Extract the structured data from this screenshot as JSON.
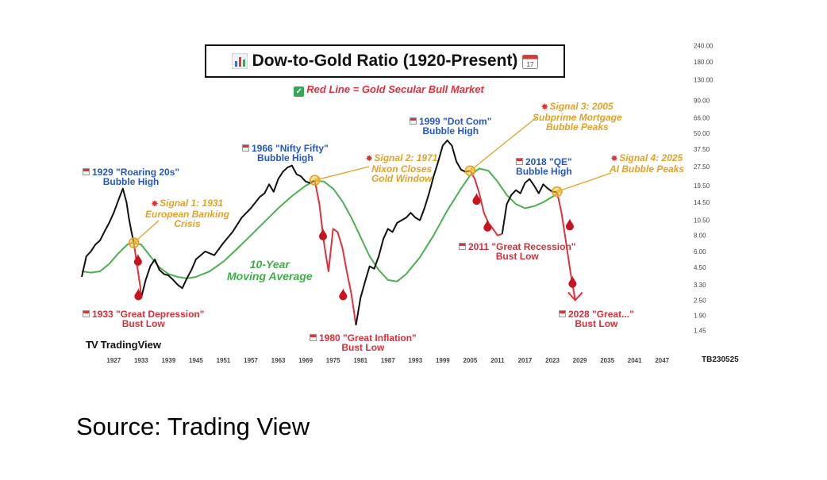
{
  "header": {
    "title": "Dow-to-Gold Ratio (1920-Present)",
    "subtitle": "Red Line = Gold Secular Bull Market"
  },
  "icons": {
    "title_left": "bar-chart-icon",
    "title_right": "calendar-icon",
    "subtitle_left": "check-icon",
    "drops": "blood-drop-icon",
    "signals": "spark-icon"
  },
  "colors": {
    "ratio_line": "#111111",
    "bear_line": "#e0303b",
    "moving_average": "#4caf50",
    "bubble_labels": "#2457c5",
    "signal_labels": "#e0a227",
    "bust_labels": "#d62f3a",
    "signal_circles": "#f5c542"
  },
  "chart_data": {
    "type": "line",
    "y_scale": "log",
    "ylim": [
      1.2,
      260
    ],
    "xlim": [
      1920,
      2052
    ],
    "y_ticks": [
      "240.00",
      "180.00",
      "130.00",
      "90.00",
      "66.00",
      "50.00",
      "37.50",
      "27.50",
      "19.50",
      "14.50",
      "10.50",
      "8.00",
      "6.00",
      "4.50",
      "3.30",
      "2.50",
      "1.90",
      "1.45"
    ],
    "x_ticks": [
      "1927",
      "1933",
      "1939",
      "1945",
      "1951",
      "1957",
      "1963",
      "1969",
      "1975",
      "1981",
      "1987",
      "1993",
      "1999",
      "2005",
      "2011",
      "2017",
      "2023",
      "2029",
      "2035",
      "2041",
      "2047"
    ],
    "series": [
      {
        "name": "",
        "role": "ratio",
        "x": [
          1920,
          1921,
          1922,
          1923,
          1924,
          1925,
          1926,
          1927,
          1928,
          1929,
          1929.8,
          1930.3,
          1930.8,
          1931.4
        ],
        "y": [
          3.8,
          5.5,
          6.0,
          6.8,
          7.3,
          8.6,
          10.0,
          12.0,
          15.0,
          18.5,
          14.5,
          11.0,
          8.8,
          7.0
        ]
      },
      {
        "name": "",
        "role": "ratio-bear",
        "x": [
          1931.4,
          1932,
          1932.8,
          1933
        ],
        "y": [
          7.0,
          5.0,
          3.2,
          2.6
        ]
      },
      {
        "name": "",
        "role": "ratio",
        "x": [
          1933,
          1934,
          1935,
          1936,
          1937,
          1938,
          1939,
          1940,
          1941,
          1942,
          1943,
          1944,
          1945,
          1947,
          1949,
          1951,
          1953,
          1955,
          1957,
          1959,
          1960,
          1961,
          1962,
          1963,
          1964,
          1965,
          1966,
          1967,
          1968,
          1969,
          1970,
          1971
        ],
        "y": [
          2.6,
          3.6,
          4.6,
          5.2,
          4.3,
          4.0,
          3.9,
          3.6,
          3.3,
          3.1,
          3.7,
          4.3,
          5.2,
          6.0,
          5.6,
          7.0,
          8.5,
          11.0,
          13.0,
          16.0,
          17.0,
          20.0,
          17.5,
          22.0,
          25.0,
          27.0,
          28.0,
          24.0,
          23.0,
          21.0,
          20.5,
          21.5
        ]
      },
      {
        "name": "",
        "role": "ratio-bear",
        "x": [
          1971,
          1972,
          1973,
          1974,
          1975,
          1976,
          1977,
          1978,
          1979,
          1980
        ],
        "y": [
          21.5,
          14.0,
          7.0,
          4.2,
          9.0,
          8.5,
          6.5,
          4.2,
          2.8,
          1.6
        ]
      },
      {
        "name": "",
        "role": "ratio",
        "x": [
          1980,
          1981,
          1982,
          1983,
          1984,
          1985,
          1986,
          1987,
          1988,
          1989,
          1990,
          1991,
          1992,
          1993,
          1994,
          1995,
          1996,
          1997,
          1998,
          1999,
          2000,
          2001,
          2002,
          2003,
          2004,
          2005
        ],
        "y": [
          1.6,
          2.6,
          3.5,
          4.6,
          4.4,
          5.5,
          7.5,
          9.0,
          8.5,
          10.0,
          10.5,
          11.0,
          12.0,
          11.0,
          10.5,
          13.0,
          17.0,
          23.0,
          30.0,
          40.0,
          44.0,
          40.0,
          30.0,
          26.0,
          25.0,
          25.5
        ]
      },
      {
        "name": "",
        "role": "ratio-bear",
        "x": [
          2005,
          2006,
          2007,
          2008,
          2009,
          2010,
          2011,
          2012
        ],
        "y": [
          25.5,
          22.0,
          17.0,
          12.0,
          10.0,
          9.0,
          8.0,
          8.2
        ]
      },
      {
        "name": "",
        "role": "ratio",
        "x": [
          2012,
          2013,
          2014,
          2015,
          2016,
          2017,
          2018,
          2019,
          2020,
          2021,
          2022,
          2023,
          2024
        ],
        "y": [
          8.2,
          14.0,
          16.5,
          18.0,
          17.0,
          20.5,
          22.0,
          19.5,
          17.0,
          20.0,
          18.5,
          17.5,
          17.5
        ]
      },
      {
        "name": "",
        "role": "ratio-bear",
        "x": [
          2024,
          2025,
          2026,
          2027,
          2028
        ],
        "y": [
          17.5,
          12.0,
          7.0,
          4.0,
          2.5
        ]
      },
      {
        "name": "10-Year Moving Average",
        "role": "moving-average",
        "x": [
          1920,
          1922,
          1924,
          1926,
          1928,
          1930,
          1931,
          1933,
          1935,
          1937,
          1939,
          1941,
          1943,
          1945,
          1948,
          1951,
          1954,
          1957,
          1960,
          1963,
          1966,
          1969,
          1971,
          1973,
          1975,
          1977,
          1979,
          1981,
          1983,
          1985,
          1987,
          1989,
          1991,
          1994,
          1997,
          2000,
          2003,
          2005,
          2007,
          2009,
          2011,
          2013,
          2015,
          2017,
          2019,
          2021,
          2023,
          2024
        ],
        "y": [
          4.2,
          4.1,
          4.2,
          4.8,
          5.8,
          6.8,
          7.0,
          6.8,
          5.5,
          4.5,
          4.0,
          3.8,
          3.7,
          3.8,
          4.2,
          5.0,
          6.3,
          8.0,
          10.2,
          13.0,
          16.2,
          19.5,
          21.3,
          21.0,
          18.5,
          14.8,
          11.0,
          7.8,
          5.5,
          4.3,
          3.6,
          3.5,
          4.0,
          5.4,
          8.0,
          12.5,
          18.5,
          23.5,
          26.5,
          25.5,
          21.0,
          16.5,
          14.0,
          13.0,
          13.5,
          14.5,
          16.0,
          17.0
        ]
      }
    ],
    "signal_points": [
      {
        "x": 1931.4,
        "y": 7.0
      },
      {
        "x": 1971,
        "y": 21.5
      },
      {
        "x": 2005,
        "y": 25.5
      },
      {
        "x": 2024,
        "y": 17.5
      }
    ],
    "drops": [
      {
        "x": 1932.3,
        "y": 5.2
      },
      {
        "x": 1932.4,
        "y": 2.8
      },
      {
        "x": 1972.8,
        "y": 8.2
      },
      {
        "x": 1977.2,
        "y": 2.8
      },
      {
        "x": 2006.4,
        "y": 15.5
      },
      {
        "x": 2008.8,
        "y": 9.6
      },
      {
        "x": 2026.8,
        "y": 9.8
      },
      {
        "x": 2027.4,
        "y": 3.5
      }
    ],
    "annotations": {
      "bubble_1929": [
        "1929 \"Roaring 20s\"",
        "Bubble High"
      ],
      "bubble_1966": [
        "1966 \"Nifty Fifty\"",
        "Bubble High"
      ],
      "bubble_1999": [
        "1999 \"Dot Com\"",
        "Bubble High"
      ],
      "bubble_2018": [
        "2018 \"QE\"",
        "Bubble High"
      ],
      "signal_1": [
        "Signal 1: 1931",
        "European Banking",
        "Crisis"
      ],
      "signal_2": [
        "Signal 2: 1971",
        "Nixon Closes",
        "Gold Window"
      ],
      "signal_3": [
        "Signal 3: 2005",
        "Subprime Mortgage",
        "Bubble Peaks"
      ],
      "signal_4": [
        "Signal 4: 2025",
        "AI Bubble Peaks"
      ],
      "bust_1933": [
        "1933 \"Great Depression\"",
        "Bust Low"
      ],
      "bust_1980": [
        "1980 \"Great Inflation\"",
        "Bust Low"
      ],
      "bust_2011": [
        "2011 \"Great Recession\"",
        "Bust Low"
      ],
      "bust_2028": [
        "2028 \"Great...\"",
        "Bust Low"
      ],
      "moving_average_label": [
        "10-Year",
        "Moving Average"
      ]
    }
  },
  "branding": {
    "logo_text": "TradingView",
    "logo_mark": "TV",
    "chart_code": "TB230525"
  },
  "footer": {
    "source": "Source: Trading View"
  }
}
